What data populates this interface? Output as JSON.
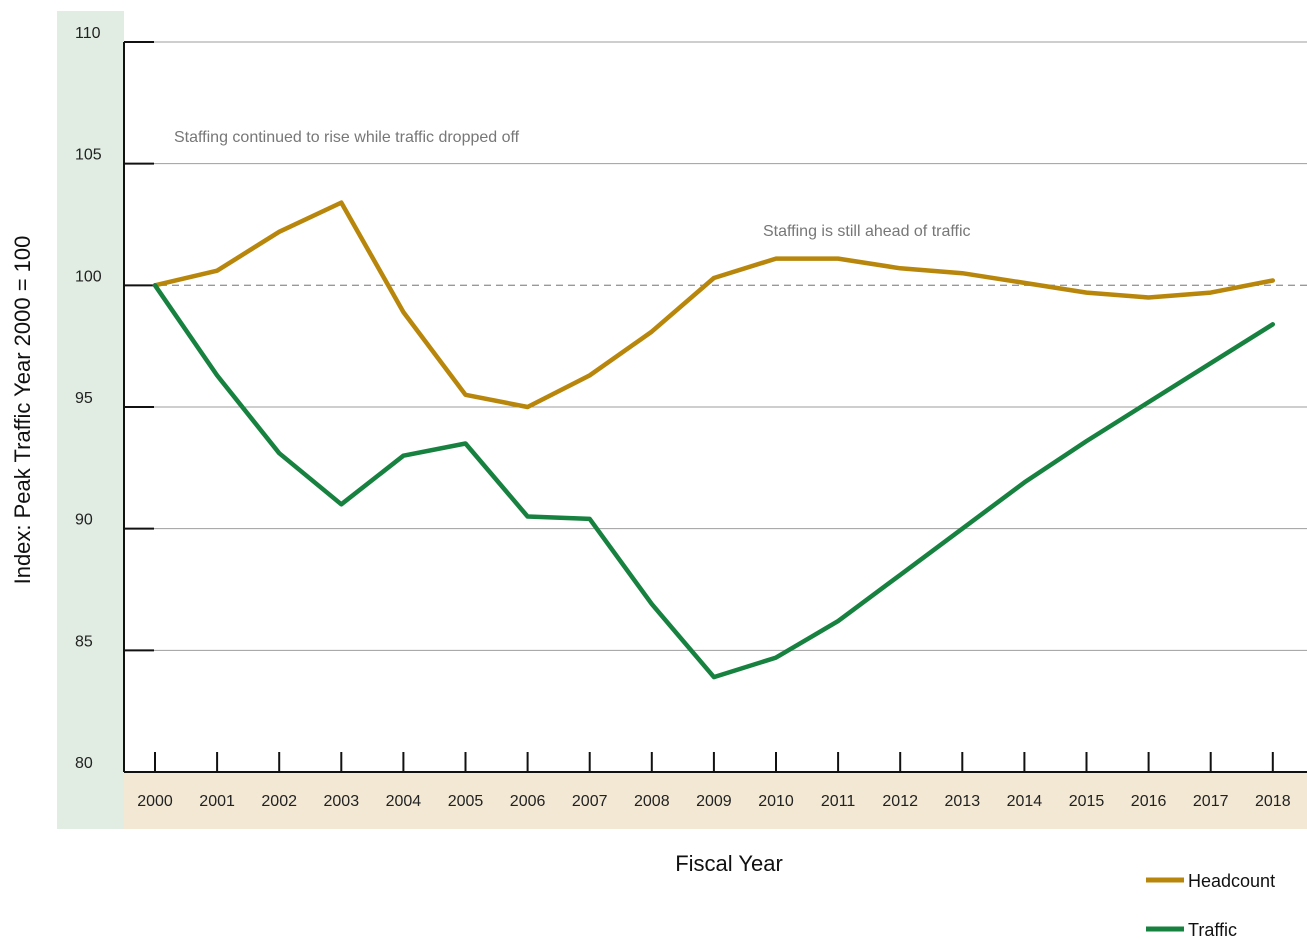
{
  "chart_data": {
    "type": "line",
    "xlabel": "Fiscal Year",
    "ylabel": "Index:  Peak Traffic Year 2000 = 100",
    "ylim": [
      80,
      110
    ],
    "yticks": [
      80,
      85,
      90,
      95,
      100,
      105,
      110
    ],
    "categories": [
      "2000",
      "2001",
      "2002",
      "2003",
      "2004",
      "2005",
      "2006",
      "2007",
      "2008",
      "2009",
      "2010",
      "2011",
      "2012",
      "2013",
      "2014",
      "2015",
      "2016",
      "2017",
      "2018"
    ],
    "reference_line": 100,
    "grid": true,
    "legend_position": "bottom-right",
    "series": [
      {
        "name": "Headcount",
        "color": "#b8860b",
        "values": [
          100,
          100.6,
          102.2,
          103.4,
          98.9,
          95.5,
          95.0,
          96.3,
          98.1,
          100.3,
          101.1,
          101.1,
          100.7,
          100.5,
          100.1,
          99.7,
          99.5,
          99.7,
          100.2
        ]
      },
      {
        "name": "Traffic",
        "color": "#17813f",
        "values": [
          100,
          96.3,
          93.1,
          91.0,
          93.0,
          93.5,
          90.5,
          90.4,
          86.9,
          83.9,
          84.7,
          86.2,
          88.1,
          90.0,
          91.9,
          93.6,
          95.2,
          96.8,
          98.4
        ]
      }
    ],
    "annotations": [
      {
        "text": "Staffing continued to rise while traffic dropped off"
      },
      {
        "text": "Staffing is still ahead of traffic"
      }
    ]
  }
}
